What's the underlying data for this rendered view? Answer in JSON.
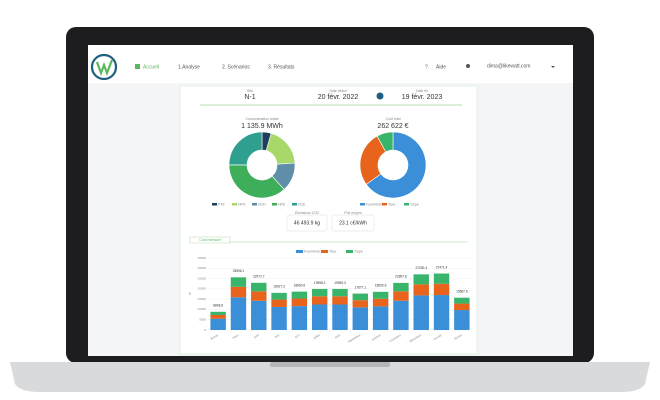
{
  "nav": {
    "items": [
      "Accueil",
      "1.Analyse",
      "2. Scénarios",
      "3. Résultats"
    ],
    "help": "Aide",
    "user": "dima@likewatt.com"
  },
  "period": {
    "site_label": "Site",
    "site": "N-1",
    "start_label": "Date début",
    "start": "20 févr. 2022",
    "end_label": "Date fin",
    "end": "19 févr. 2023"
  },
  "stats": [
    {
      "label": "Émissions CO2",
      "value": "46 493.9 kg"
    },
    {
      "label": "Prix moyen",
      "value": "23.1 c€/kWh"
    }
  ],
  "tab": "Coût mensuel",
  "chart_data": [
    {
      "type": "pie",
      "title": "Consommation totale",
      "total": "1 135.9 MWh",
      "categories": [
        "PTE",
        "HPH",
        "HCH",
        "HPE",
        "HCE"
      ],
      "colors": [
        "#1f3f5f",
        "#a8d86a",
        "#5f8fa8",
        "#3fae5a",
        "#2f9f8f"
      ],
      "values": [
        4.5,
        19.6,
        14.2,
        36.8,
        24.9
      ]
    },
    {
      "type": "pie",
      "title": "Coût total",
      "total": "262 622 €",
      "categories": [
        "Fourniture",
        "Taxe",
        "Turpe"
      ],
      "colors": [
        "#3a8fd8",
        "#e8641c",
        "#38b56a"
      ],
      "values": [
        65,
        27,
        8
      ]
    },
    {
      "type": "bar",
      "y_label": "€",
      "categories": [
        "février",
        "mars",
        "avril",
        "mai",
        "juin",
        "juillet",
        "août",
        "septembre",
        "octobre",
        "novembre",
        "décembre",
        "janvier",
        "février"
      ],
      "totals": [
        8848.8,
        25596.1,
        22971.7,
        18027.3,
        18660.6,
        19958.2,
        19955.3,
        17677.1,
        18550.6,
        22897.8,
        27030.4,
        27471.4,
        15687.6
      ],
      "series": [
        {
          "name": "Fourniture",
          "color": "#3a8fd8",
          "values": [
            5500,
            15900,
            14200,
            11200,
            11600,
            12400,
            12400,
            11000,
            11500,
            14200,
            16800,
            17000,
            9700
          ]
        },
        {
          "name": "Taxe",
          "color": "#e8641c",
          "values": [
            1800,
            5100,
            4600,
            3600,
            3700,
            4000,
            4000,
            3500,
            3700,
            4600,
            5400,
            5500,
            3150
          ]
        },
        {
          "name": "Turpe",
          "color": "#38b56a",
          "values": [
            1550,
            4600,
            4150,
            3250,
            3350,
            3550,
            3550,
            3200,
            3350,
            4100,
            4850,
            4950,
            2850
          ]
        }
      ],
      "ylim": [
        0,
        35000
      ],
      "yticks": [
        0,
        5000,
        10000,
        15000,
        20000,
        25000,
        30000,
        35000
      ],
      "grid": true
    }
  ]
}
